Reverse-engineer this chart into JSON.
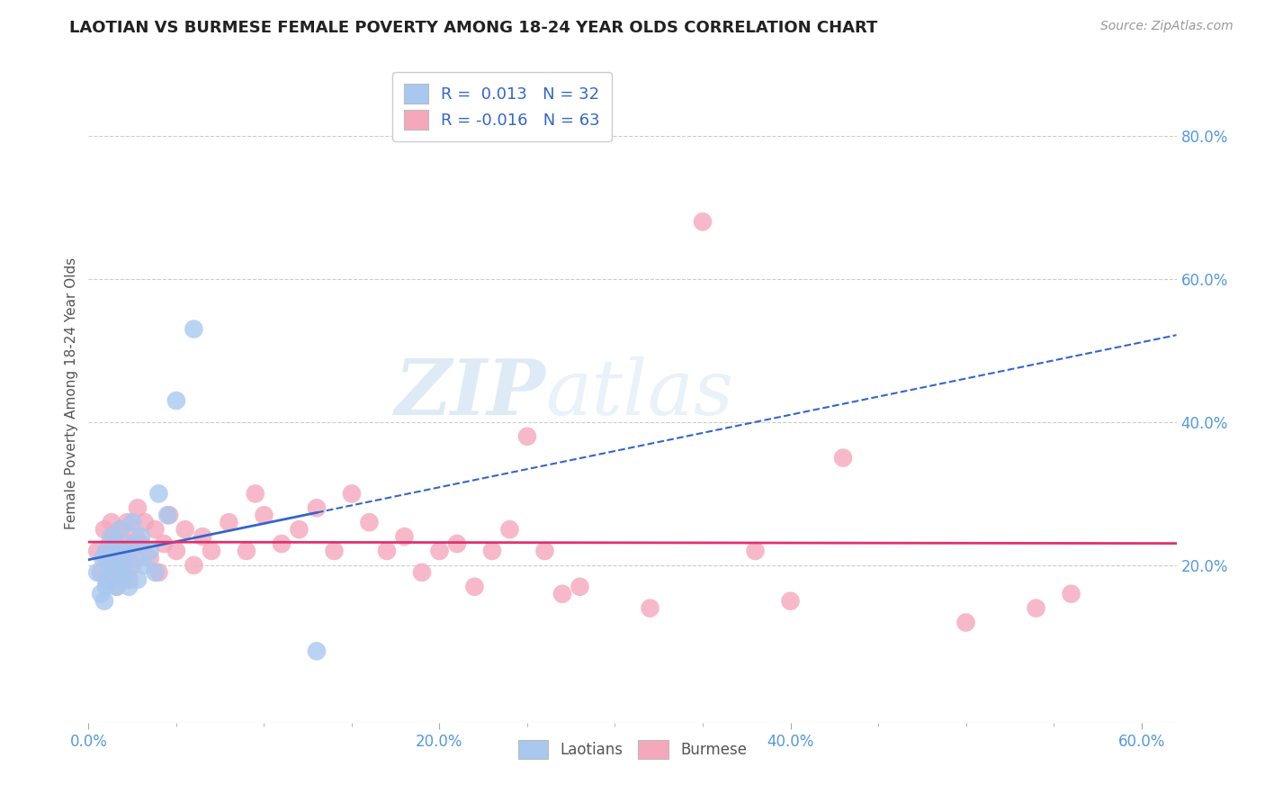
{
  "title": "LAOTIAN VS BURMESE FEMALE POVERTY AMONG 18-24 YEAR OLDS CORRELATION CHART",
  "source_text": "Source: ZipAtlas.com",
  "ylabel": "Female Poverty Among 18-24 Year Olds",
  "xlim": [
    0.0,
    0.62
  ],
  "ylim": [
    -0.02,
    0.9
  ],
  "xtick_labels": [
    "0.0%",
    "",
    "",
    "",
    "20.0%",
    "",
    "",
    "",
    "40.0%",
    "",
    "",
    "",
    "60.0%"
  ],
  "xtick_vals": [
    0.0,
    0.05,
    0.1,
    0.15,
    0.2,
    0.25,
    0.3,
    0.35,
    0.4,
    0.45,
    0.5,
    0.55,
    0.6
  ],
  "ytick_labels": [
    "20.0%",
    "40.0%",
    "60.0%",
    "80.0%"
  ],
  "ytick_vals": [
    0.2,
    0.4,
    0.6,
    0.8
  ],
  "background_color": "#ffffff",
  "grid_color": "#cccccc",
  "laotian_color": "#a8c8f0",
  "burmese_color": "#f5a8bc",
  "laotian_line_color": "#3366cc",
  "burmese_line_color": "#e03070",
  "laotian_R": 0.013,
  "laotian_N": 32,
  "burmese_R": -0.016,
  "burmese_N": 63,
  "watermark_zip": "ZIP",
  "watermark_atlas": "atlas",
  "legend_label1": "Laotians",
  "legend_label2": "Burmese",
  "laotian_x": [
    0.005,
    0.007,
    0.008,
    0.009,
    0.01,
    0.01,
    0.01,
    0.012,
    0.013,
    0.015,
    0.015,
    0.016,
    0.017,
    0.018,
    0.019,
    0.02,
    0.02,
    0.022,
    0.023,
    0.025,
    0.025,
    0.027,
    0.028,
    0.03,
    0.032,
    0.035,
    0.038,
    0.04,
    0.045,
    0.05,
    0.06,
    0.13
  ],
  "laotian_y": [
    0.19,
    0.16,
    0.21,
    0.15,
    0.18,
    0.22,
    0.17,
    0.2,
    0.24,
    0.19,
    0.23,
    0.17,
    0.21,
    0.25,
    0.18,
    0.2,
    0.22,
    0.19,
    0.17,
    0.23,
    0.26,
    0.21,
    0.18,
    0.24,
    0.2,
    0.22,
    0.19,
    0.3,
    0.27,
    0.43,
    0.53,
    0.08
  ],
  "burmese_x": [
    0.005,
    0.007,
    0.009,
    0.01,
    0.011,
    0.012,
    0.013,
    0.015,
    0.015,
    0.016,
    0.017,
    0.018,
    0.019,
    0.02,
    0.02,
    0.022,
    0.023,
    0.025,
    0.025,
    0.027,
    0.028,
    0.03,
    0.032,
    0.035,
    0.038,
    0.04,
    0.043,
    0.046,
    0.05,
    0.055,
    0.06,
    0.065,
    0.07,
    0.08,
    0.09,
    0.095,
    0.1,
    0.11,
    0.12,
    0.13,
    0.14,
    0.15,
    0.16,
    0.17,
    0.18,
    0.19,
    0.2,
    0.21,
    0.22,
    0.23,
    0.24,
    0.25,
    0.26,
    0.27,
    0.28,
    0.32,
    0.35,
    0.38,
    0.4,
    0.43,
    0.5,
    0.54,
    0.56
  ],
  "burmese_y": [
    0.22,
    0.19,
    0.25,
    0.21,
    0.18,
    0.23,
    0.26,
    0.2,
    0.24,
    0.17,
    0.22,
    0.25,
    0.19,
    0.21,
    0.23,
    0.26,
    0.18,
    0.22,
    0.2,
    0.24,
    0.28,
    0.23,
    0.26,
    0.21,
    0.25,
    0.19,
    0.23,
    0.27,
    0.22,
    0.25,
    0.2,
    0.24,
    0.22,
    0.26,
    0.22,
    0.3,
    0.27,
    0.23,
    0.25,
    0.28,
    0.22,
    0.3,
    0.26,
    0.22,
    0.24,
    0.19,
    0.22,
    0.23,
    0.17,
    0.22,
    0.25,
    0.38,
    0.22,
    0.16,
    0.17,
    0.14,
    0.68,
    0.22,
    0.15,
    0.35,
    0.12,
    0.14,
    0.16
  ]
}
